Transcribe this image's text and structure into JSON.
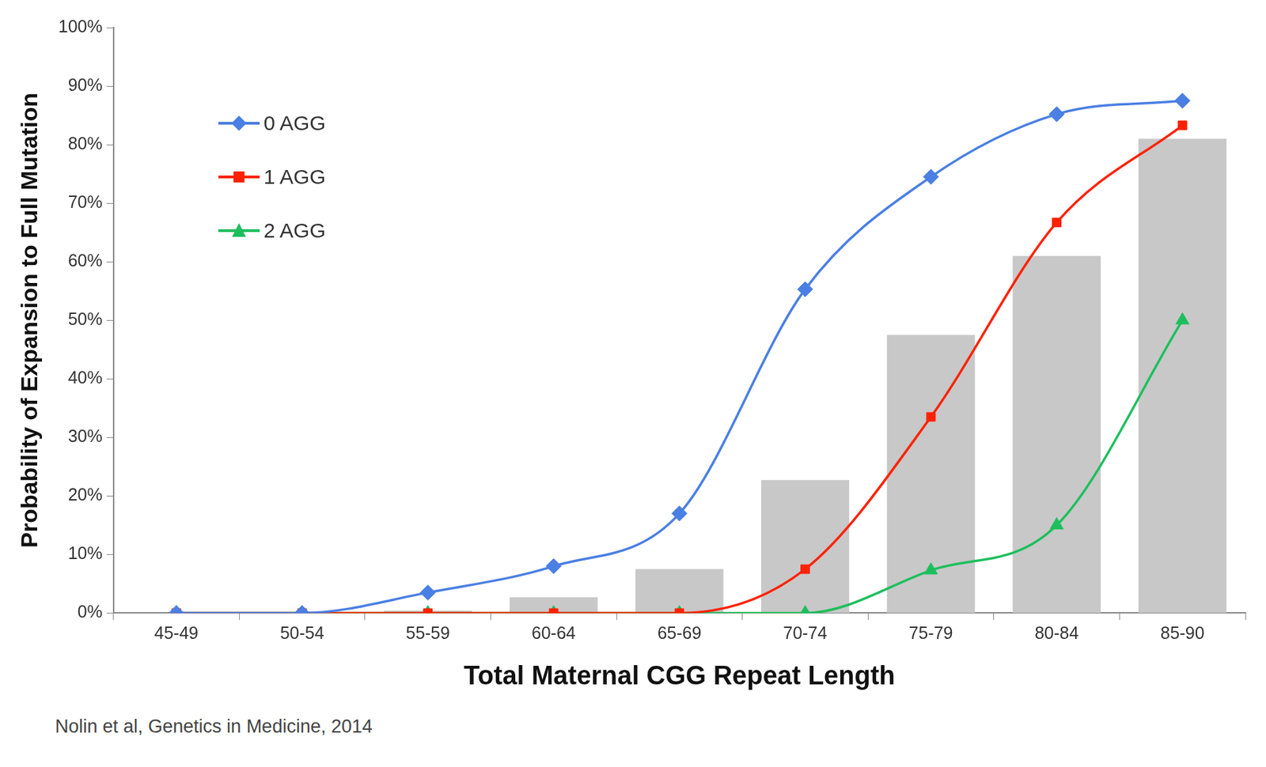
{
  "chart_data": {
    "type": "line",
    "categories": [
      "45-49",
      "50-54",
      "55-59",
      "60-64",
      "65-69",
      "70-74",
      "75-79",
      "80-84",
      "85-90"
    ],
    "series": [
      {
        "type": "bar",
        "color": "#c8c8c8",
        "values": [
          0,
          0,
          0.4,
          2.7,
          7.5,
          22.7,
          47.5,
          61,
          81
        ]
      },
      {
        "name": "0 AGG",
        "color": "#4a7fe3",
        "marker": "diamond",
        "values": [
          0,
          0,
          3.5,
          8,
          17,
          55.3,
          74.5,
          85.2,
          87.5
        ]
      },
      {
        "name": "1 AGG",
        "color": "#ff2200",
        "marker": "square",
        "values": [
          0,
          0,
          0,
          0,
          0,
          7.5,
          33.5,
          66.7,
          83.3
        ]
      },
      {
        "name": "2 AGG",
        "color": "#1dbf5c",
        "marker": "triangle",
        "values": [
          0,
          0,
          0,
          0,
          0,
          0,
          7.3,
          15,
          50
        ]
      }
    ],
    "x_label": "Total Maternal CGG Repeat Length",
    "y_label": "Probability of Expansion to Full Mutation",
    "ylim": [
      0,
      100
    ],
    "yticks": [
      {
        "value": 0,
        "label": "0%"
      },
      {
        "value": 10,
        "label": "10%"
      },
      {
        "value": 20,
        "label": "20%"
      },
      {
        "value": 30,
        "label": "30%"
      },
      {
        "value": 40,
        "label": "40%"
      },
      {
        "value": 50,
        "label": "50%"
      },
      {
        "value": 60,
        "label": "60%"
      },
      {
        "value": 70,
        "label": "70%"
      },
      {
        "value": 80,
        "label": "80%"
      },
      {
        "value": 90,
        "label": "90%"
      },
      {
        "value": 100,
        "label": "100%"
      }
    ],
    "grid": false,
    "legend": "upper left",
    "source": "Nolin et al, Genetics in Medicine, 2014"
  }
}
